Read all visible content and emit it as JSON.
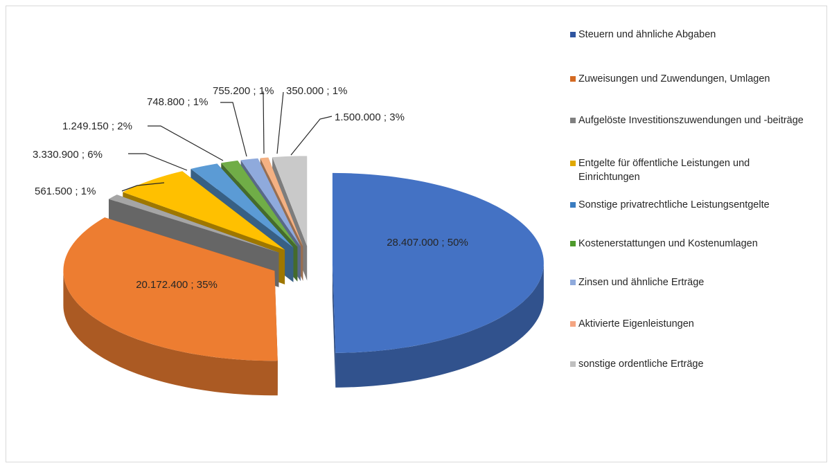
{
  "chart_data": {
    "type": "pie",
    "three_d": true,
    "legend_position": "right",
    "categories": [
      "Steuern und ähnliche Abgaben",
      "Zuweisungen und Zuwendungen, Umlagen",
      "Aufgelöste Investitionszuwendungen und -beiträge",
      "Entgelte für öffentliche Leistungen und Einrichtungen",
      "Sonstige privatrechtliche Leistungsentgelte",
      "Kostenerstattungen und Kostenumlagen",
      "Zinsen und ähnliche Erträge",
      "Aktivierte Eigenleistungen",
      "sonstige ordentliche Erträge"
    ],
    "values": [
      28407000,
      20172400,
      561500,
      3330900,
      1249150,
      748800,
      755200,
      350000,
      1500000
    ],
    "data_labels": [
      "28.407.000 ; 50%",
      "20.172.400 ; 35%",
      "561.500 ; 1%",
      "3.330.900 ; 6%",
      "1.249.150 ; 2%",
      "748.800 ; 1%",
      "755.200 ; 1%",
      "350.000 ; 1%",
      "1.500.000 ; 3%"
    ],
    "colors": [
      "#4472C4",
      "#ED7D31",
      "#A5A5A5",
      "#FFC000",
      "#5B9BD5",
      "#70AD47",
      "#8FAADC",
      "#F4B183",
      "#C9C9C9"
    ],
    "legend_colors": [
      "#2F55A0",
      "#D46A22",
      "#808080",
      "#E0A800",
      "#3A7CC0",
      "#4E9A2C",
      "#8FAADC",
      "#F4A582",
      "#BFBFBF"
    ]
  }
}
